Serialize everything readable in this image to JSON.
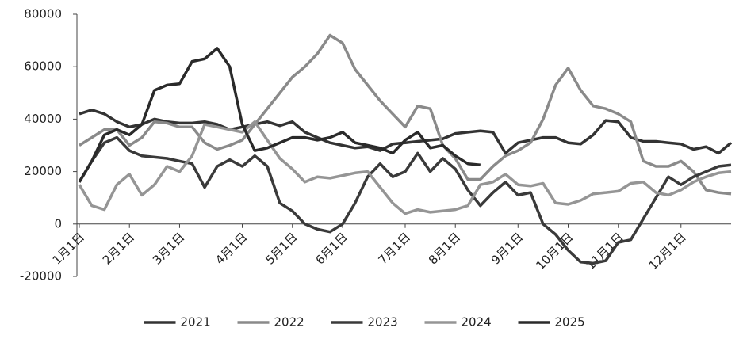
{
  "chart_data": {
    "type": "line",
    "categories": [
      "1月1日",
      null,
      null,
      null,
      "2月1日",
      null,
      null,
      null,
      "3月1日",
      null,
      null,
      null,
      null,
      "4月1日",
      null,
      null,
      null,
      "5月1日",
      null,
      null,
      null,
      "6月1日",
      null,
      null,
      null,
      null,
      "7月1日",
      null,
      null,
      null,
      "8月1日",
      null,
      null,
      null,
      null,
      "9月1日",
      null,
      null,
      null,
      "10月1日",
      null,
      null,
      null,
      "11月1日",
      null,
      null,
      null,
      null,
      "12月1日",
      null,
      null,
      null,
      null
    ],
    "ylim": [
      -20000,
      80000
    ],
    "yticks": [
      -20000,
      0,
      20000,
      40000,
      60000,
      80000
    ],
    "grid": false,
    "legend": "bottom",
    "series": [
      {
        "name": "2021",
        "color": "#333333",
        "values": [
          42000,
          43500,
          42000,
          39000,
          37000,
          38000,
          40000,
          39000,
          38500,
          38500,
          39000,
          38000,
          36000,
          37000,
          38000,
          39000,
          37500,
          39000,
          35000,
          33000,
          31000,
          30000,
          29000,
          29500,
          28000,
          30500,
          31000,
          31500,
          32000,
          32500,
          34500,
          35000,
          35500,
          35000,
          27000,
          31000,
          32000,
          33000,
          33000,
          31000,
          30500,
          34000,
          39500,
          39000,
          33000,
          31500,
          31500,
          31000,
          30500,
          28500,
          29500,
          27000,
          31000
        ]
      },
      {
        "name": "2022",
        "color": "#8a8a8a",
        "values": [
          30000,
          33000,
          36000,
          36000,
          30000,
          33000,
          39000,
          38500,
          37000,
          37000,
          31000,
          28500,
          30000,
          32000,
          38000,
          44000,
          50000,
          56000,
          60000,
          65000,
          72000,
          69000,
          59000,
          53000,
          47000,
          42000,
          37000,
          45000,
          44000,
          30000,
          25000,
          17000,
          17000,
          22000,
          26000,
          28000,
          31000,
          40000,
          53000,
          59500,
          51000,
          45000,
          44000,
          42000,
          39000,
          24000,
          22000,
          22000,
          24000,
          20000,
          13000,
          12000,
          11500
        ]
      },
      {
        "name": "2023",
        "color": "#3a3a3a",
        "values": [
          16000,
          24000,
          31000,
          33000,
          28000,
          26000,
          25500,
          25000,
          24000,
          23000,
          14000,
          22000,
          24500,
          22000,
          26000,
          22000,
          8000,
          5000,
          0,
          -2000,
          -3000,
          0,
          8000,
          18000,
          23000,
          18000,
          20000,
          27000,
          20000,
          25000,
          21000,
          13000,
          7000,
          12000,
          16000,
          11000,
          12000,
          0,
          -4000,
          -10000,
          -14500,
          -15000,
          -14000,
          -7000,
          -6000,
          2000,
          10000,
          18000,
          15000,
          18000,
          20000,
          22000,
          22500
        ]
      },
      {
        "name": "2024",
        "color": "#959595",
        "values": [
          15000,
          7000,
          5500,
          15000,
          19000,
          11000,
          15000,
          22000,
          20000,
          26000,
          38000,
          37000,
          36000,
          35000,
          39000,
          32000,
          25000,
          21000,
          16000,
          18000,
          17500,
          18500,
          19500,
          20000,
          14000,
          8000,
          4000,
          5500,
          4500,
          5000,
          5500,
          7000,
          15000,
          16000,
          19000,
          15000,
          14500,
          15500,
          8000,
          7500,
          9000,
          11500,
          12000,
          12500,
          15500,
          16000,
          12000,
          11000,
          13000,
          16000,
          18000,
          19500,
          20000
        ]
      },
      {
        "name": "2025",
        "color": "#2a2a2a",
        "values": [
          16000,
          24000,
          34000,
          36000,
          34000,
          38000,
          51000,
          53000,
          53500,
          62000,
          63000,
          67000,
          60000,
          38000,
          28000,
          29000,
          31000,
          33000,
          33000,
          32000,
          33000,
          35000,
          31000,
          30000,
          29000,
          27000,
          32000,
          35000,
          29000,
          30000,
          26000,
          23000,
          22500,
          null,
          null,
          null,
          null,
          null,
          null,
          null,
          null,
          null,
          null,
          null,
          null,
          null,
          null,
          null,
          null,
          null,
          null,
          null,
          null
        ]
      }
    ]
  }
}
